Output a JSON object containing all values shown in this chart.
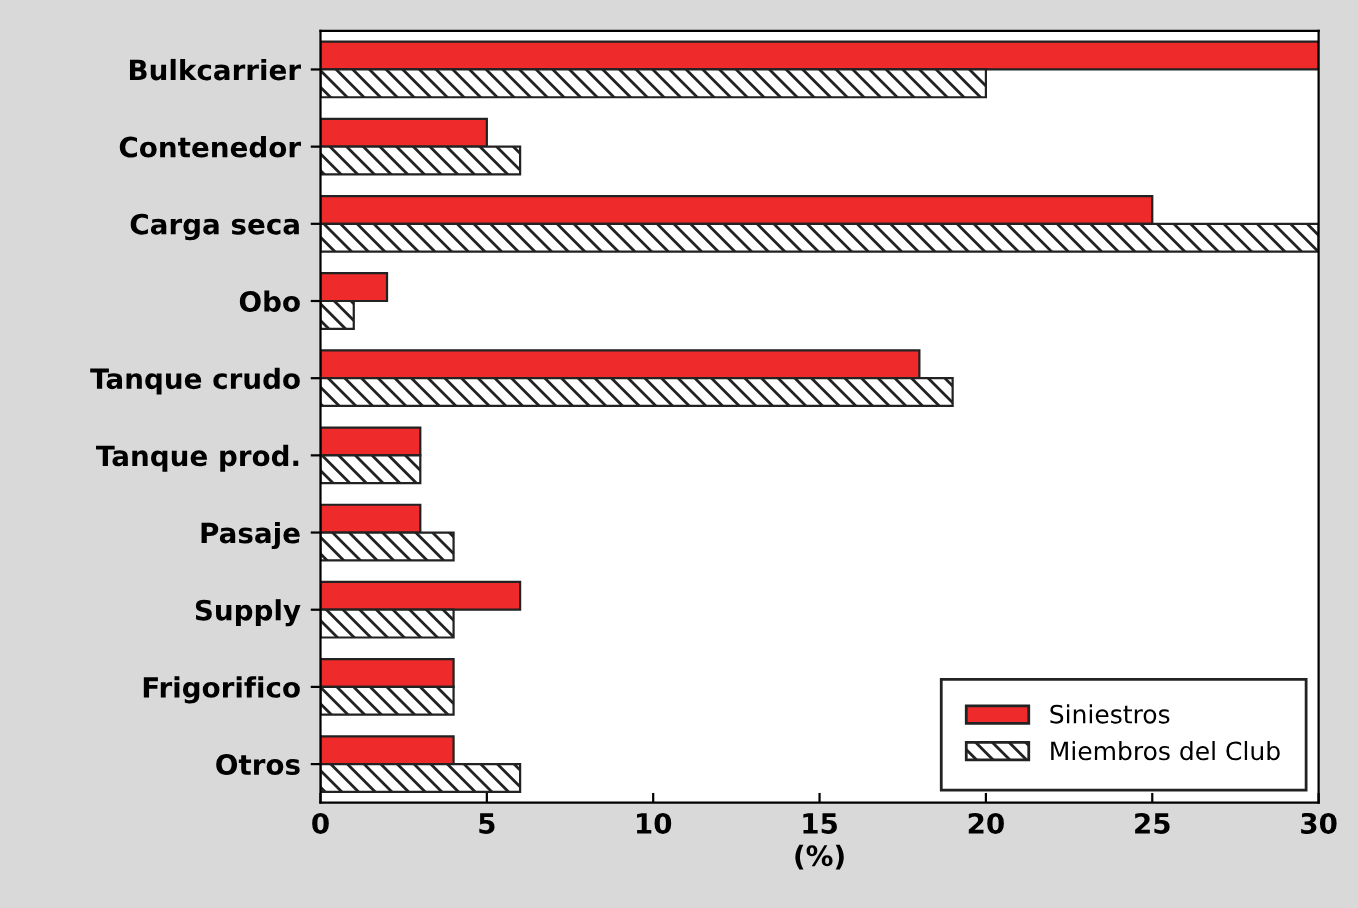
{
  "chart_data": {
    "type": "bar",
    "orientation": "horizontal",
    "xlabel": "(%)",
    "categories": [
      "Bulkcarrier",
      "Contenedor",
      "Carga seca",
      "Obo",
      "Tanque crudo",
      "Tanque prod.",
      "Pasaje",
      "Supply",
      "Frigorifico",
      "Otros"
    ],
    "series": [
      {
        "name": "Siniestros",
        "color": "#ee2a2a",
        "values": [
          30,
          5,
          25,
          2,
          18,
          3,
          3,
          6,
          4,
          4
        ]
      },
      {
        "name": "Miembros del Club",
        "color": "#222222",
        "values": [
          20,
          6,
          30,
          1,
          19,
          3,
          4,
          4,
          4,
          6
        ]
      }
    ],
    "xlim": [
      0,
      30
    ],
    "xticks": [
      0,
      5,
      10,
      15,
      20,
      25,
      30
    ],
    "grid": false,
    "legend": "bottom right"
  }
}
